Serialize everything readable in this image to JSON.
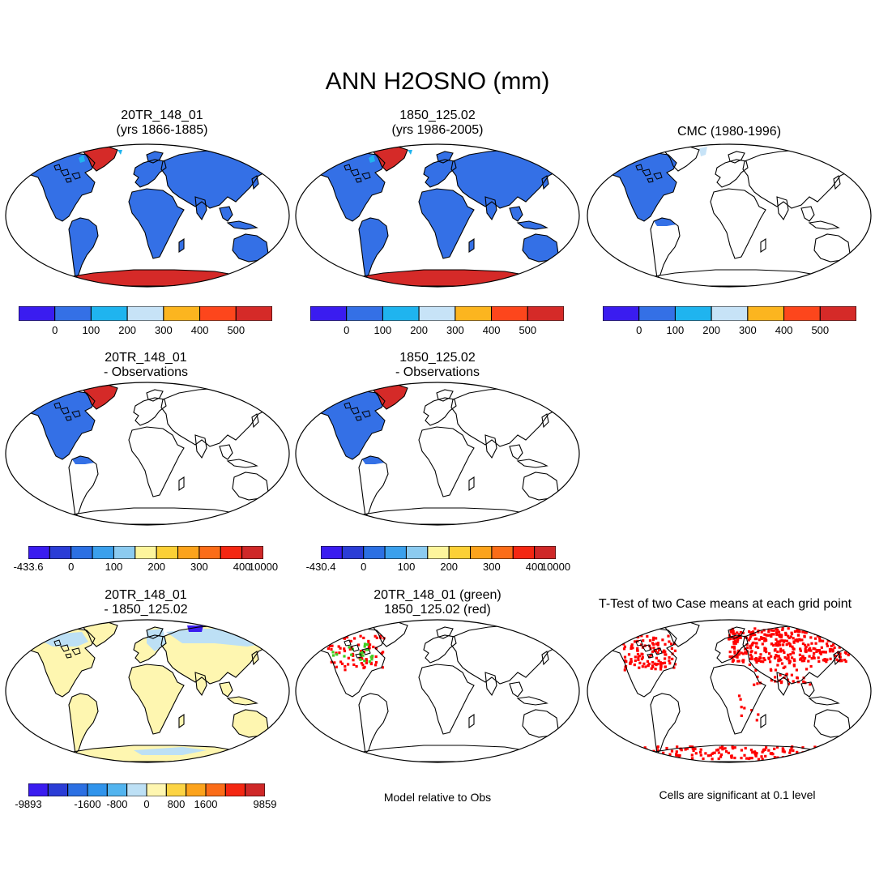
{
  "figure": {
    "title": "ANN H2OSNO (mm)",
    "colors": {
      "abs": [
        "#3a1cf0",
        "#3470e6",
        "#1fb4ef",
        "#c7e3f7",
        "#fcb51f",
        "#fd461c",
        "#d52a28"
      ],
      "diff": [
        "#3a1cf0",
        "#2b3dd6",
        "#2c70e3",
        "#3ba0ec",
        "#8ccbf0",
        "#fdf59c",
        "#fcd036",
        "#fca31c",
        "#fb6c18",
        "#f42712",
        "#cf2828"
      ],
      "pdiff": [
        "#3a1cf0",
        "#2b3dd6",
        "#2c70e3",
        "#3094ec",
        "#52b4ef",
        "#bde0f5",
        "#fef6b0",
        "#fcd444",
        "#fca31c",
        "#fb6c18",
        "#f42712",
        "#cf2828"
      ],
      "green": "#3ecf22",
      "red": "#ff0000"
    },
    "panels": [
      {
        "id": "p1",
        "title": [
          "20TR_148_01",
          "(yrs 1866-1885)"
        ],
        "fill": "#3470e6",
        "greenland": "#d52a28",
        "antarctica": "#d52a28",
        "coverage": "global"
      },
      {
        "id": "p2",
        "title": [
          "1850_125.02",
          "(yrs 1986-2005)"
        ],
        "fill": "#3470e6",
        "greenland": "#d52a28",
        "antarctica": "#d52a28",
        "coverage": "global"
      },
      {
        "id": "p3",
        "title": [
          "CMC (1980-1996)"
        ],
        "fill": "#3470e6",
        "coverage": "north-america"
      },
      {
        "id": "p4",
        "title": [
          "20TR_148_01",
          "- Observations"
        ],
        "fill": "#3470e6",
        "greenland": "#d52a28",
        "coverage": "north-america"
      },
      {
        "id": "p5",
        "title": [
          "1850_125.02",
          "- Observations"
        ],
        "fill": "#3470e6",
        "greenland": "#d52a28",
        "coverage": "north-america"
      },
      {
        "id": "p6",
        "title": [
          "20TR_148_01",
          "- 1850_125.02"
        ],
        "fill": "#fef6b0",
        "coverage": "global-diff"
      },
      {
        "id": "p7",
        "title": [
          "20TR_148_01 (green)",
          "1850_125.02 (red)"
        ],
        "coverage": "dots-na"
      },
      {
        "id": "p8",
        "title": [
          "T-Test of two Case means at each grid point"
        ],
        "coverage": "dots-global"
      }
    ],
    "colorbars": [
      {
        "id": "cb1",
        "labels": [
          "0",
          "100",
          "200",
          "300",
          "400",
          "500"
        ]
      },
      {
        "id": "cb2",
        "labels": [
          "0",
          "100",
          "200",
          "300",
          "400",
          "500"
        ]
      },
      {
        "id": "cb3",
        "labels": [
          "0",
          "100",
          "200",
          "300",
          "400",
          "500"
        ]
      },
      {
        "id": "cb4",
        "labels": [
          "-433.6",
          "0",
          "100",
          "200",
          "300",
          "400",
          "10000"
        ]
      },
      {
        "id": "cb5",
        "labels": [
          "-430.4",
          "0",
          "100",
          "200",
          "300",
          "400",
          "10000"
        ]
      },
      {
        "id": "cb6",
        "labels": [
          "-9893",
          "-1600",
          "-800",
          "0",
          "800",
          "1600",
          "9859"
        ]
      }
    ],
    "notes": {
      "model_relative": "Model relative to Obs",
      "significance": "Cells are significant at 0.1 level"
    }
  }
}
